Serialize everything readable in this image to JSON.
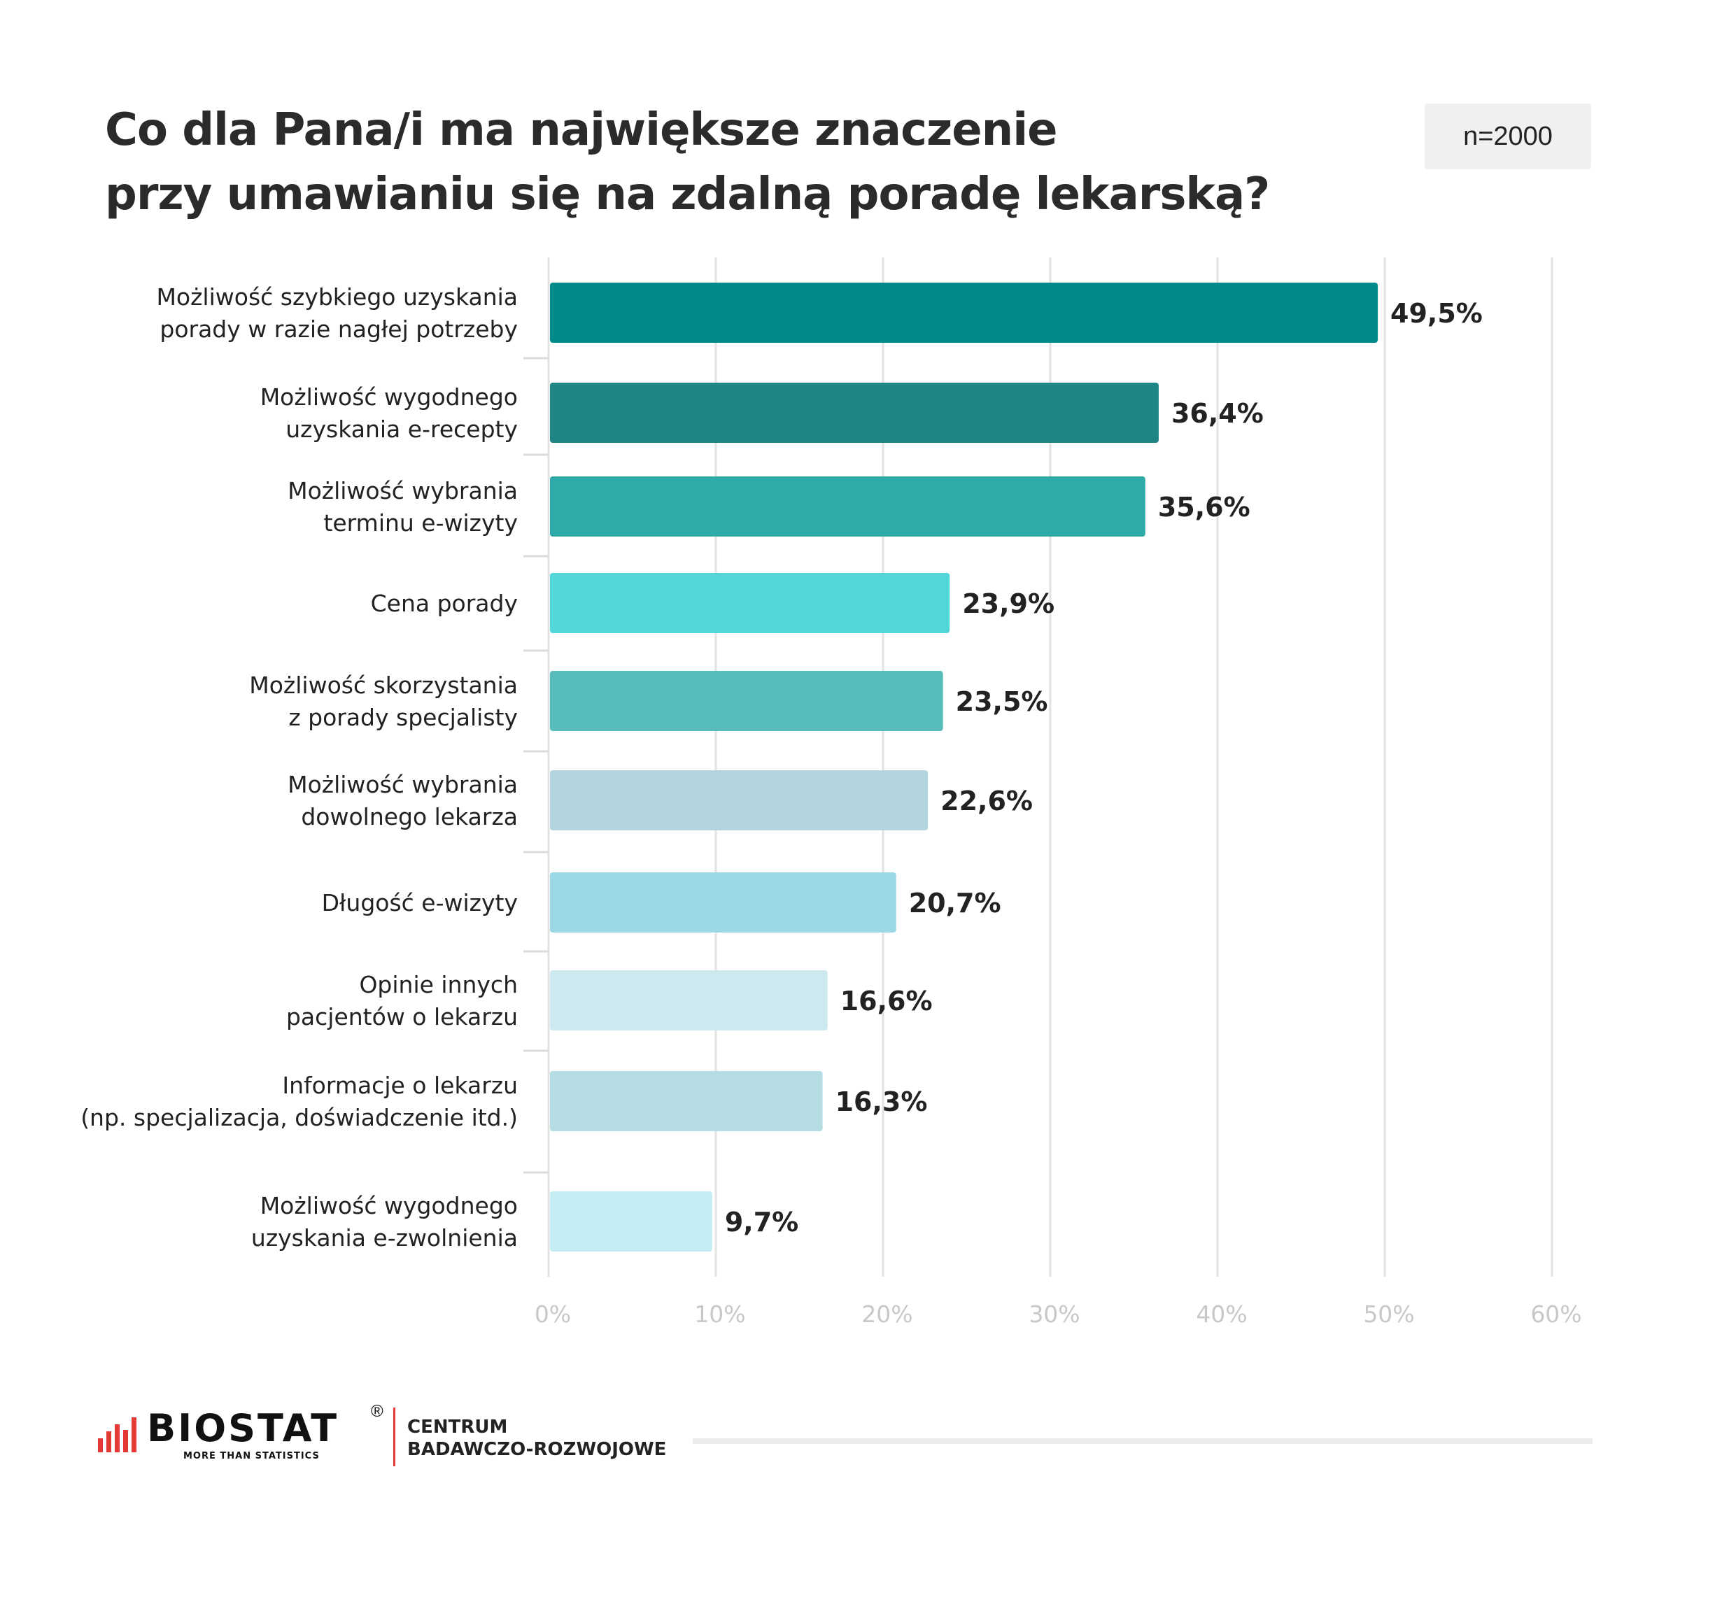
{
  "chart_data": {
    "type": "bar",
    "orientation": "horizontal",
    "title_lines": [
      "Co dla Pana/i ma największe znaczenie",
      "przy umawianiu się na zdalną poradę lekarską?"
    ],
    "sample_size": "n=2000",
    "categories": [
      [
        "Możliwość szybkiego uzyskania ",
        "porady w razie nagłej potrzeby"
      ],
      [
        "Możliwość wygodnego ",
        "uzyskania e-recepty"
      ],
      [
        "Możliwość wybrania",
        "terminu e-wizyty"
      ],
      [
        "Cena porady"
      ],
      [
        "Możliwość skorzystania ",
        "z porady specjalisty"
      ],
      [
        "Możliwość wybrania",
        "dowolnego lekarza"
      ],
      [
        "Długość e-wizyty"
      ],
      [
        "Opinie innych ",
        "pacjentów o lekarzu"
      ],
      [
        "Informacje o lekarzu ",
        "(np. specjalizacja, doświadczenie itd.)"
      ],
      [
        "Możliwość wygodnego",
        "uzyskania e-zwolnienia"
      ]
    ],
    "values": [
      49.5,
      36.4,
      35.6,
      23.9,
      23.5,
      22.6,
      20.7,
      16.6,
      16.3,
      9.7
    ],
    "value_labels": [
      "49,5%",
      "36,4%",
      "35,6%",
      "23,9%",
      "23,5%",
      "22,6%",
      "20,7%",
      "16,6%",
      "16,3%",
      "9,7%"
    ],
    "bar_colors": [
      "#008a8a",
      "#1f8585",
      "#2faaa8",
      "#52d6da",
      "#58bcba",
      "#b3d6de",
      "#9cd9e6",
      "#cde9f0",
      "#b5dce2",
      "#c3ecf3"
    ],
    "x_ticks": [
      "0%",
      "10%",
      "20%",
      "30%",
      "40%",
      "50%",
      "60%"
    ],
    "xlim": [
      0,
      60
    ],
    "grid": true
  },
  "footer": {
    "brand": "BIOSTAT",
    "registered": "®",
    "tagline": "MORE THAN STATISTICS",
    "centrum_line1": "CENTRUM",
    "centrum_line2": "BADAWCZO-ROZWOJOWE"
  }
}
